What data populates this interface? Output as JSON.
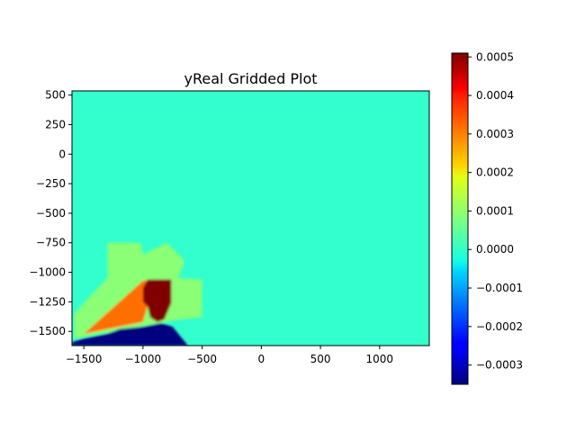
{
  "chart_data": {
    "type": "heatmap",
    "title": "yReal Gridded Plot",
    "xlabel": "",
    "ylabel": "",
    "xlim": [
      -1600,
      1420
    ],
    "ylim": [
      -1620,
      535
    ],
    "x_ticks": [
      -1500,
      -1000,
      -500,
      0,
      500,
      1000
    ],
    "x_tick_labels": [
      "−1500",
      "−1000",
      "−500",
      "0",
      "500",
      "1000"
    ],
    "y_ticks": [
      500,
      250,
      0,
      -250,
      -500,
      -750,
      -1000,
      -1250,
      -1500
    ],
    "y_tick_labels": [
      "500",
      "250",
      "0",
      "−250",
      "−500",
      "−750",
      "−1000",
      "−1250",
      "−1500"
    ],
    "colorbar": {
      "colormap": "jet",
      "vmin": -0.00035,
      "vmax": 0.00051,
      "ticks": [
        0.0005,
        0.0004,
        0.0003,
        0.0002,
        0.0001,
        0.0,
        -0.0001,
        -0.0002,
        -0.0003
      ],
      "tick_labels": [
        "0.0005",
        "0.0004",
        "0.0003",
        "0.0002",
        "0.0001",
        "0.0000",
        "−0.0001",
        "−0.0002",
        "−0.0003"
      ]
    },
    "background_value": 1.5e-05,
    "regions": [
      {
        "name": "green-plateau",
        "value": 9e-05,
        "polygon": [
          [
            -1580,
            -1350
          ],
          [
            -1400,
            -1150
          ],
          [
            -1300,
            -1050
          ],
          [
            -1300,
            -750
          ],
          [
            -1020,
            -750
          ],
          [
            -1000,
            -850
          ],
          [
            -800,
            -750
          ],
          [
            -650,
            -900
          ],
          [
            -700,
            -1050
          ],
          [
            -500,
            -1060
          ],
          [
            -500,
            -1380
          ],
          [
            -700,
            -1400
          ],
          [
            -1580,
            -1560
          ]
        ]
      },
      {
        "name": "orange-wedge",
        "value": 0.00031,
        "polygon": [
          [
            -1500,
            -1520
          ],
          [
            -1000,
            -1070
          ],
          [
            -900,
            -1070
          ],
          [
            -1000,
            -1420
          ],
          [
            -1400,
            -1500
          ]
        ]
      },
      {
        "name": "dark-red-core",
        "value": 0.00051,
        "polygon": [
          [
            -1000,
            -1130
          ],
          [
            -960,
            -1060
          ],
          [
            -760,
            -1060
          ],
          [
            -760,
            -1260
          ],
          [
            -820,
            -1400
          ],
          [
            -880,
            -1420
          ],
          [
            -940,
            -1380
          ],
          [
            -960,
            -1290
          ],
          [
            -1000,
            -1250
          ]
        ]
      },
      {
        "name": "dark-blue-low",
        "value": -0.00035,
        "polygon": [
          [
            -1600,
            -1620
          ],
          [
            -1600,
            -1590
          ],
          [
            -1500,
            -1560
          ],
          [
            -1300,
            -1520
          ],
          [
            -1200,
            -1480
          ],
          [
            -1000,
            -1460
          ],
          [
            -850,
            -1430
          ],
          [
            -750,
            -1460
          ],
          [
            -620,
            -1620
          ]
        ]
      }
    ]
  }
}
